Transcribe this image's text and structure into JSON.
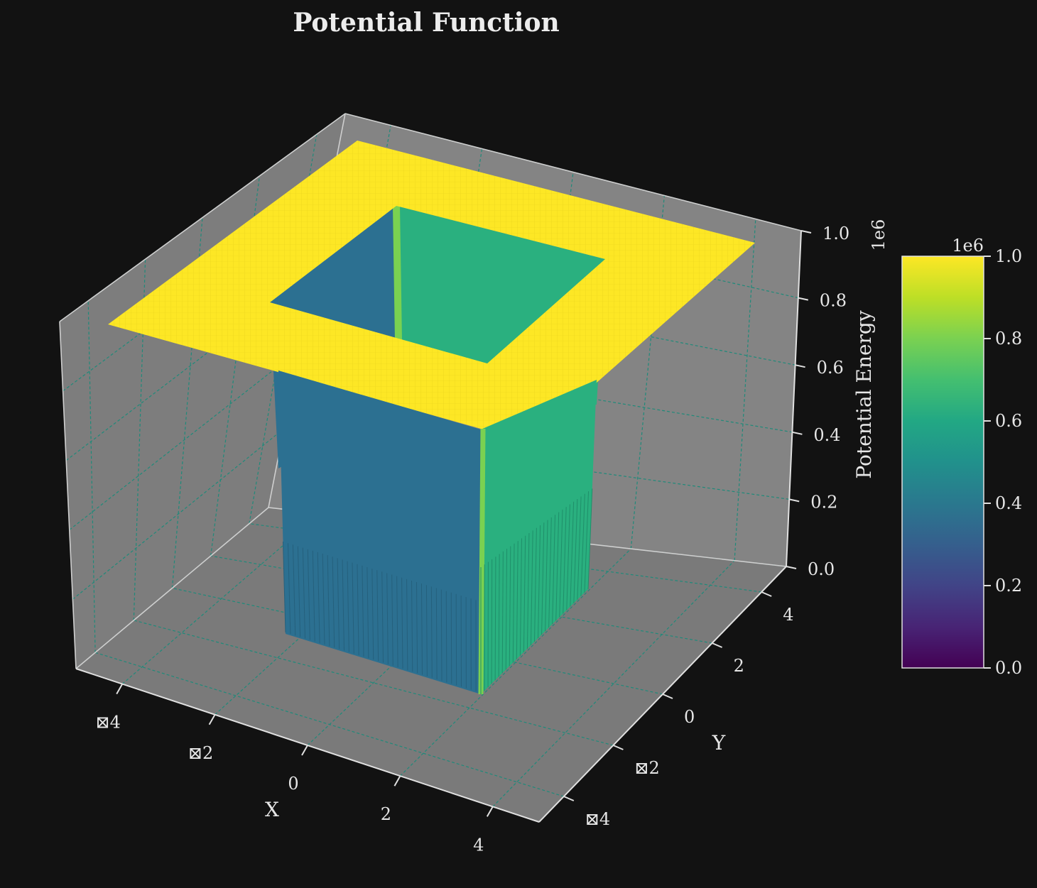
{
  "chart_data": {
    "type": "surface3d",
    "title": "Potential Function",
    "xlabel": "X",
    "ylabel": "Y",
    "zlabel": "Potential Energy",
    "z_multiplier_label": "1e6",
    "colormap": "viridis",
    "xlim": [
      -5,
      5
    ],
    "ylim": [
      -5,
      5
    ],
    "zlim": [
      0,
      1000000
    ],
    "x_ticks": [
      "⊠4",
      "⊠2",
      "0",
      "2",
      "4"
    ],
    "x_tick_values": [
      -4,
      -2,
      0,
      2,
      4
    ],
    "y_ticks": [
      "⊠4",
      "⊠2",
      "0",
      "2",
      "4"
    ],
    "y_tick_values": [
      -4,
      -2,
      0,
      2,
      4
    ],
    "z_ticks": [
      "0.0",
      "0.2",
      "0.4",
      "0.6",
      "0.8",
      "1.0"
    ],
    "z_tick_values": [
      0,
      200000,
      400000,
      600000,
      800000,
      1000000
    ],
    "surface": {
      "description": "square well",
      "well_half_width": 2,
      "value_inside": 0,
      "value_outside": 1000000
    },
    "grid": true,
    "colorbar": {
      "label_multiplier": "1e6",
      "ticks": [
        "0.0",
        "0.2",
        "0.4",
        "0.6",
        "0.8",
        "1.0"
      ],
      "range": [
        0,
        1000000
      ]
    },
    "colors": {
      "background": "#121212",
      "pane": "#808080",
      "grid": "#1f8a7a",
      "surface_top": "#fde725",
      "wall_left": "#2c7091",
      "wall_right": "#2ab07f",
      "wall_edge": "#7ad151"
    }
  }
}
